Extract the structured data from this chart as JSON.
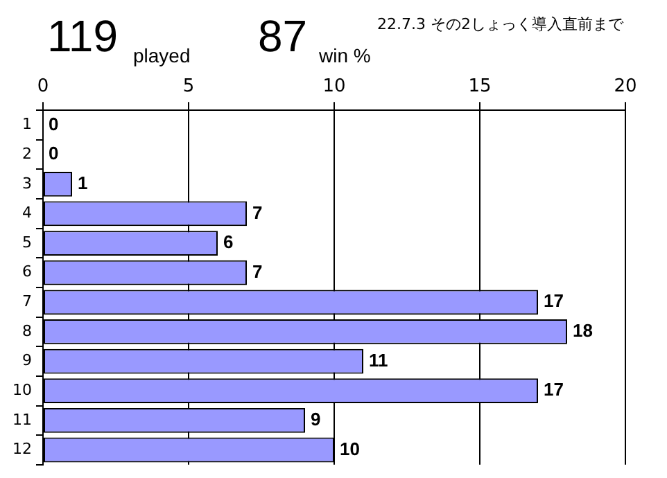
{
  "chart_data": {
    "type": "bar",
    "orientation": "horizontal",
    "title": "22.7.3 その2しょっく導入直前まで",
    "annotations": [
      "119",
      "played",
      "87",
      "win %"
    ],
    "categories": [
      "1",
      "2",
      "3",
      "4",
      "5",
      "6",
      "7",
      "8",
      "9",
      "10",
      "11",
      "12"
    ],
    "values": [
      0,
      0,
      1,
      7,
      6,
      7,
      17,
      18,
      11,
      17,
      9,
      10
    ],
    "color": "#9999ff",
    "xlim": [
      0,
      20
    ],
    "xticks": [
      0,
      5,
      10,
      15,
      20
    ],
    "grid": "x",
    "data_labels": true,
    "legend": false
  }
}
